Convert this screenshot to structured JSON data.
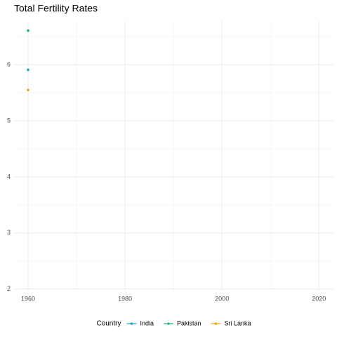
{
  "chart_data": {
    "type": "line",
    "title": "Total Fertility Rates",
    "x": [
      1960
    ],
    "series": [
      {
        "name": "India",
        "color": "#1aa2c8",
        "values": [
          5.91
        ]
      },
      {
        "name": "Pakistan",
        "color": "#22b086",
        "values": [
          6.61
        ]
      },
      {
        "name": "Sri Lanka",
        "color": "#f6a21c",
        "values": [
          5.55
        ]
      }
    ],
    "xlim": [
      1957.1,
      2023
    ],
    "xticks": [
      1960,
      1980,
      2000,
      2020
    ],
    "x_minor_ticks": [
      1970,
      1990,
      2010
    ],
    "ylim": [
      1.97,
      6.78
    ],
    "yticks": [
      2,
      3,
      4,
      5,
      6
    ],
    "y_minor_ticks": [
      2.5,
      3.5,
      4.5,
      5.5,
      6.5
    ],
    "grid": true,
    "legend_title": "Country",
    "legend_position": "bottom"
  }
}
